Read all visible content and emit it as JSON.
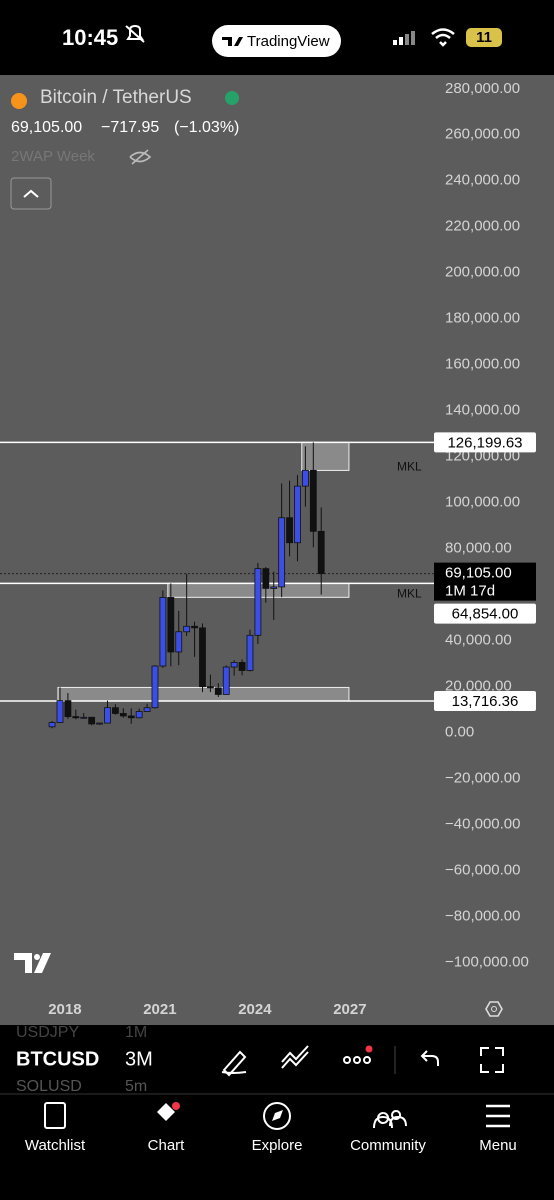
{
  "status_bar": {
    "time": "10:45",
    "app": "TradingView",
    "battery": "11"
  },
  "symbol": {
    "name": "Bitcoin / TetherUS",
    "price": "69,105.00",
    "change": "−717.95",
    "change_pct": "(−1.03%)",
    "indicator": "2WAP Week"
  },
  "chart_data": {
    "type": "candlestick",
    "x": [
      2017.5,
      2017.75,
      2018,
      2018.25,
      2018.5,
      2018.75,
      2019,
      2019.25,
      2019.5,
      2019.75,
      2020,
      2020.25,
      2020.5,
      2020.75,
      2021,
      2021.25,
      2021.5,
      2021.75,
      2022,
      2022.25,
      2022.5,
      2022.75,
      2023,
      2023.25,
      2023.5,
      2023.75,
      2024,
      2024.25,
      2024.5,
      2024.75,
      2025,
      2025.25,
      2025.5,
      2025.75,
      2026
    ],
    "open": [
      2480,
      4338,
      13880,
      6926,
      6390,
      6626,
      3740,
      4105,
      10800,
      8290,
      7195,
      6410,
      9135,
      10780,
      28920,
      58760,
      35040,
      43820,
      46210,
      45530,
      19940,
      19420,
      16540,
      28480,
      30480,
      26970,
      42280,
      71290,
      62680,
      63330,
      93430,
      82550,
      107170,
      114050,
      87500
    ],
    "high": [
      4980,
      19666,
      17170,
      9990,
      8500,
      6800,
      4200,
      13880,
      12340,
      10540,
      10500,
      10430,
      12470,
      29300,
      61800,
      64850,
      52920,
      69000,
      48190,
      47440,
      25210,
      21470,
      29190,
      31430,
      31800,
      44730,
      73780,
      72000,
      70000,
      108350,
      109590,
      111980,
      124470,
      126200,
      97900
    ],
    "low": [
      1840,
      4100,
      5920,
      5750,
      5880,
      3120,
      3350,
      4030,
      7700,
      6430,
      3800,
      6150,
      8900,
      10370,
      28100,
      28800,
      29280,
      42000,
      32930,
      17570,
      17600,
      15470,
      16490,
      24750,
      24900,
      26550,
      38550,
      56500,
      49000,
      58870,
      76600,
      74500,
      98200,
      80600,
      60000
    ],
    "close": [
      4338,
      13880,
      6926,
      6390,
      6626,
      3740,
      4105,
      10800,
      8290,
      7195,
      6410,
      9135,
      10780,
      28920,
      58760,
      35040,
      43820,
      46210,
      45530,
      19940,
      19420,
      16540,
      28480,
      30480,
      26970,
      42280,
      71290,
      62680,
      63330,
      93430,
      82550,
      107170,
      114050,
      87500,
      69105
    ],
    "up_color": "#3b4ee6",
    "down_color": "#111111",
    "xlim": [
      2015.95,
      2029.53
    ],
    "xticks": [
      2018,
      2021,
      2024,
      2027
    ],
    "ylim": [
      -112000,
      286000
    ],
    "yticks": [
      {
        "value": 280000,
        "label": "280,000.00"
      },
      {
        "value": 260000,
        "label": "260,000.00"
      },
      {
        "value": 240000,
        "label": "240,000.00"
      },
      {
        "value": 220000,
        "label": "220,000.00"
      },
      {
        "value": 200000,
        "label": "200,000.00"
      },
      {
        "value": 180000,
        "label": "180,000.00"
      },
      {
        "value": 160000,
        "label": "160,000.00"
      },
      {
        "value": 140000,
        "label": "140,000.00"
      },
      {
        "value": 120000,
        "label": "120,000.00"
      },
      {
        "value": 100000,
        "label": "100,000.00"
      },
      {
        "value": 80000,
        "label": "80,000.00"
      },
      {
        "value": 60000,
        "label": "60,000.00"
      },
      {
        "value": 40000,
        "label": "40,000.00"
      },
      {
        "value": 20000,
        "label": "20,000.00"
      },
      {
        "value": 0,
        "label": "0.00"
      },
      {
        "value": -20000,
        "label": "−20,000.00"
      },
      {
        "value": -40000,
        "label": "−40,000.00"
      },
      {
        "value": -60000,
        "label": "−60,000.00"
      },
      {
        "value": -80000,
        "label": "−80,000.00"
      },
      {
        "value": -100000,
        "label": "−100,000.00"
      }
    ],
    "grid": false,
    "levels": [
      {
        "value": 126199.63,
        "label": "126,199.63"
      },
      {
        "value": 64854,
        "label": "64,854.00"
      },
      {
        "value": 13716.36,
        "label": "13,716.36"
      }
    ],
    "zones": [
      {
        "x": [
          2025.48,
          2026.97
        ],
        "y": [
          114000,
          126199.63
        ],
        "label": "MKL"
      },
      {
        "x": [
          2021.25,
          2026.97
        ],
        "y": [
          58800,
          64854
        ],
        "label": "MKL"
      },
      {
        "x": [
          2017.78,
          2026.97
        ],
        "y": [
          13716.36,
          19600
        ]
      }
    ],
    "last_price": {
      "value": 69105,
      "label": "69,105.00",
      "countdown": "1M 17d"
    }
  },
  "watchlist_rows": [
    [
      "USDJPY",
      "1M"
    ],
    [
      "BTCUSD",
      "3M"
    ],
    [
      "SOLUSD",
      "5m"
    ]
  ],
  "tabs": [
    "Watchlist",
    "Chart",
    "Explore",
    "Community",
    "Menu"
  ]
}
